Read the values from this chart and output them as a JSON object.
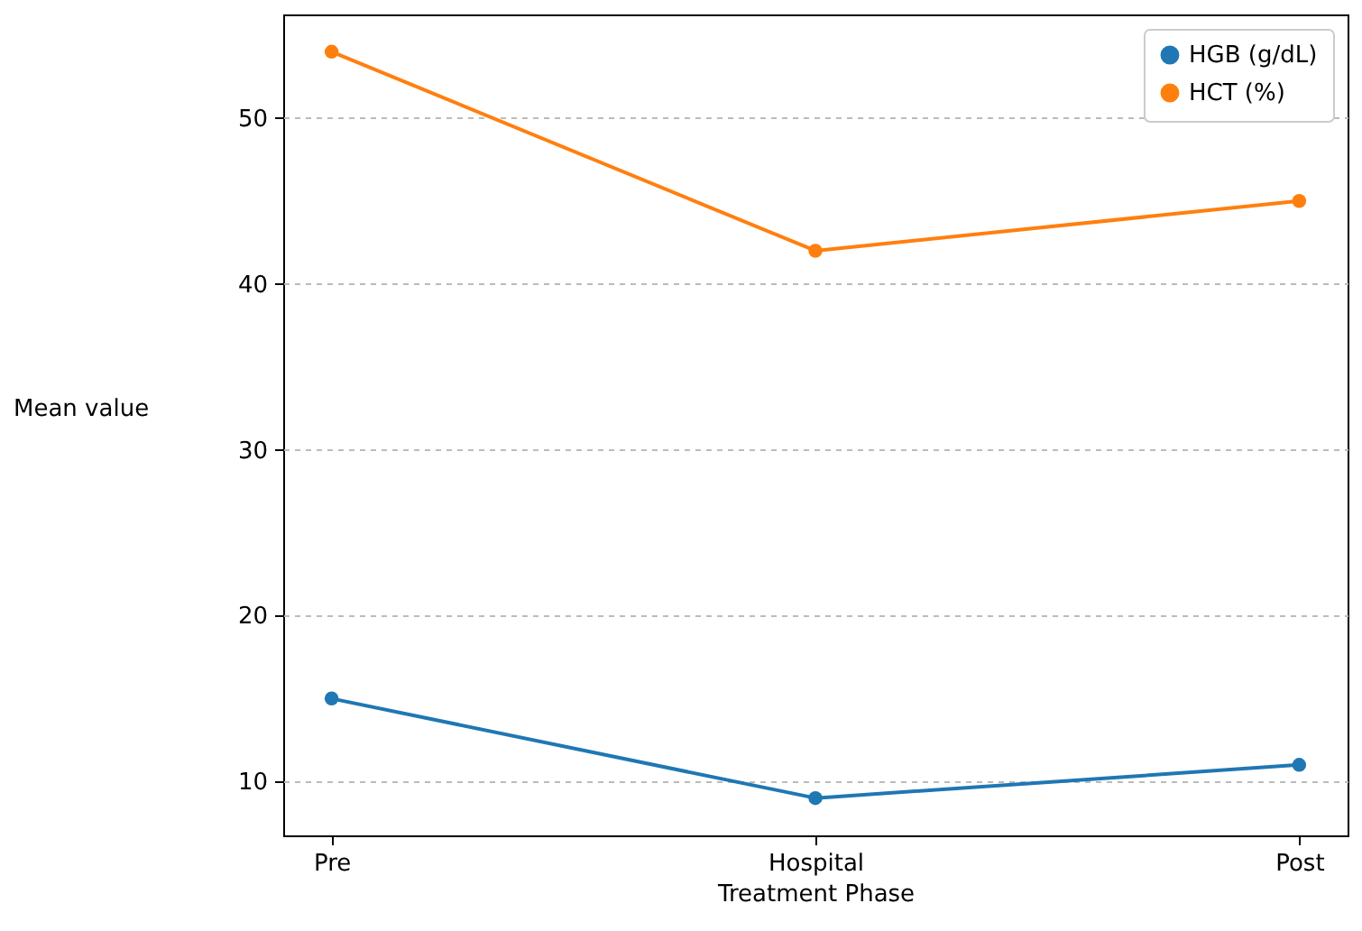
{
  "chart_data": {
    "type": "line",
    "xlabel": "Treatment Phase",
    "ylabel": "Mean value",
    "categories": [
      "Pre",
      "Hospital",
      "Post"
    ],
    "series": [
      {
        "name": "HGB (g/dL)",
        "color": "#1f77b4",
        "values": [
          15,
          9,
          11
        ]
      },
      {
        "name": "HCT (%)",
        "color": "#ff7f0e",
        "values": [
          54,
          42,
          45
        ]
      }
    ],
    "ylim": [
      6.75,
      56.25
    ],
    "yticks": [
      10,
      20,
      30,
      40,
      50
    ],
    "grid": "y",
    "legend": "top right",
    "marker": "circle",
    "line_style": "solid"
  }
}
